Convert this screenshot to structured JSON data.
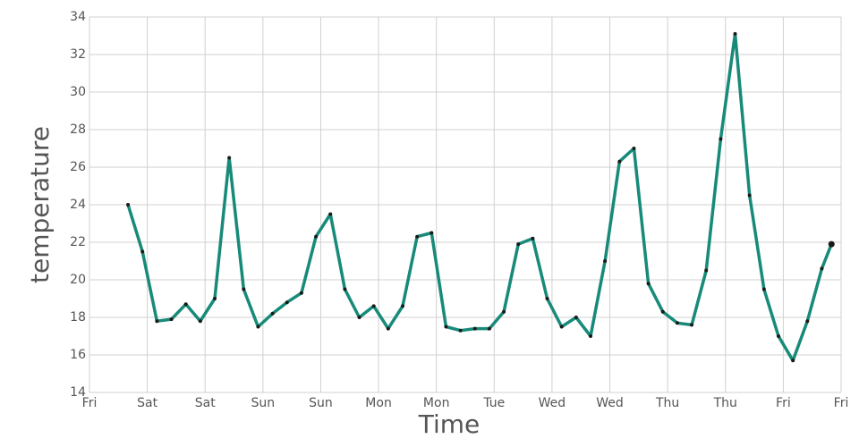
{
  "chart_data": {
    "type": "line",
    "x_label": "Time",
    "y_label": "temperature",
    "x": [
      8,
      11,
      14,
      17,
      20,
      23,
      26,
      29,
      32,
      35,
      38,
      41,
      44,
      47,
      50,
      53,
      56,
      59,
      62,
      65,
      68,
      71,
      74,
      77,
      80,
      83,
      86,
      89,
      92,
      95,
      98,
      101,
      104,
      107,
      110,
      113,
      116,
      119,
      122,
      125,
      128,
      131,
      134,
      137,
      140,
      143,
      146,
      149,
      152,
      154
    ],
    "values": [
      24,
      21.5,
      17.8,
      17.9,
      18.7,
      17.8,
      19.0,
      26.5,
      19.5,
      17.5,
      18.2,
      18.8,
      19.3,
      22.3,
      23.5,
      19.5,
      18.0,
      18.6,
      17.4,
      18.6,
      22.3,
      22.5,
      17.5,
      17.3,
      17.4,
      17.4,
      18.3,
      21.9,
      22.2,
      19.0,
      17.5,
      18.0,
      17.0,
      21.0,
      26.3,
      27.0,
      19.8,
      18.3,
      17.7,
      17.6,
      20.5,
      27.5,
      33.1,
      24.5,
      19.5,
      17.0,
      15.7,
      17.8,
      20.6,
      21.9
    ],
    "color": "#178a79",
    "marker_color": "#1a1a1a",
    "xlim": [
      0,
      156
    ],
    "xticks": [
      {
        "value": 0,
        "label": "Fri"
      },
      {
        "value": 12,
        "label": "Sat"
      },
      {
        "value": 24,
        "label": "Sat"
      },
      {
        "value": 36,
        "label": "Sun"
      },
      {
        "value": 48,
        "label": "Sun"
      },
      {
        "value": 60,
        "label": "Mon"
      },
      {
        "value": 72,
        "label": "Mon"
      },
      {
        "value": 84,
        "label": "Tue"
      },
      {
        "value": 96,
        "label": "Wed"
      },
      {
        "value": 108,
        "label": "Wed"
      },
      {
        "value": 120,
        "label": "Thu"
      },
      {
        "value": 132,
        "label": "Thu"
      },
      {
        "value": 144,
        "label": "Fri"
      },
      {
        "value": 156,
        "label": "Fri"
      }
    ],
    "ylim": [
      14,
      34
    ],
    "yticks": [
      14,
      16,
      18,
      20,
      22,
      24,
      26,
      28,
      30,
      32,
      34
    ],
    "grid": true
  }
}
